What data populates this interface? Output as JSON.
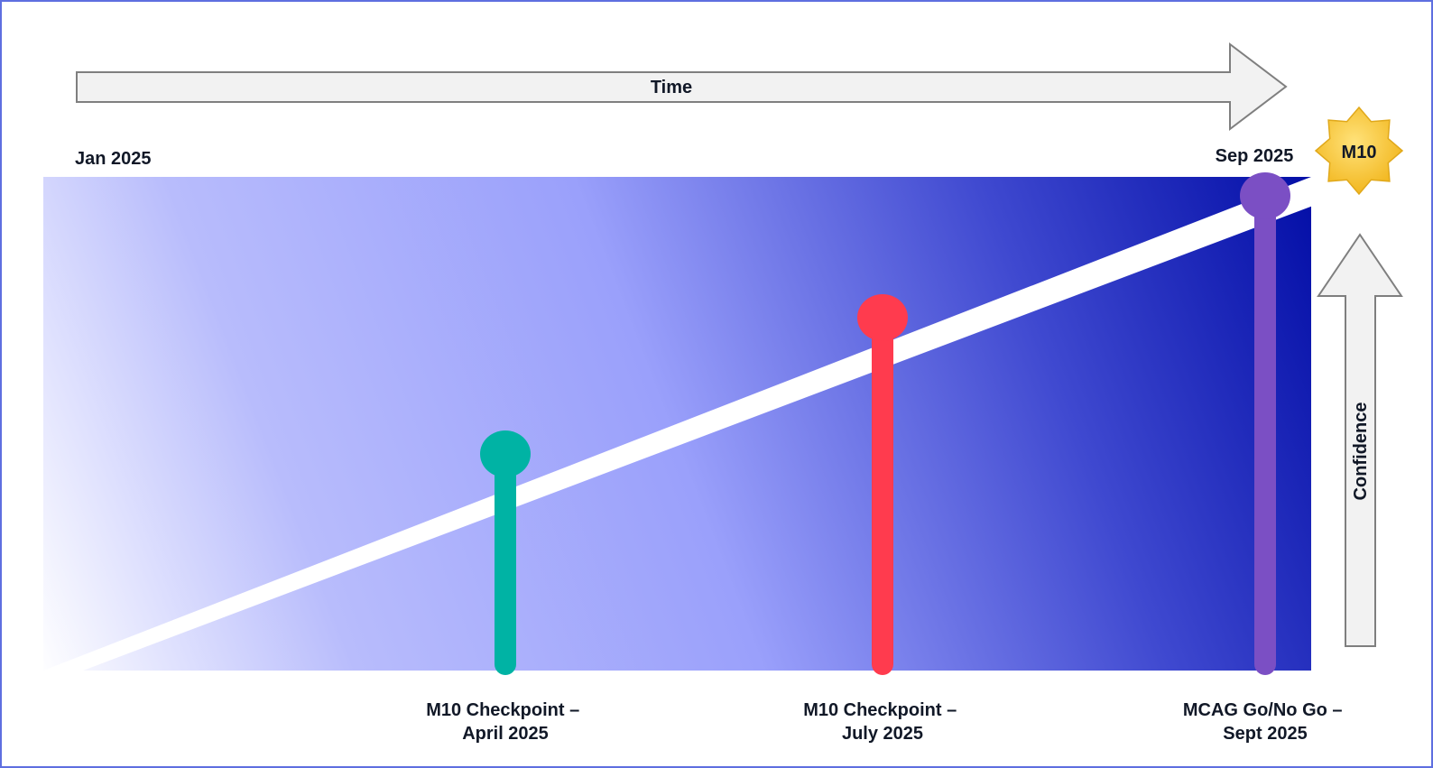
{
  "time_arrow": {
    "label": "Time"
  },
  "confidence_arrow": {
    "label": "Confidence"
  },
  "dates": {
    "start": "Jan 2025",
    "end": "Sep 2025"
  },
  "badge": {
    "label": "M10",
    "icon": "star-badge-icon"
  },
  "milestones": [
    {
      "line1": "M10 Checkpoint –",
      "line2": "April 2025",
      "color": "#00b3a4"
    },
    {
      "line1": "M10 Checkpoint –",
      "line2": "July 2025",
      "color": "#ff3b4e"
    },
    {
      "line1": "MCAG Go/No Go –",
      "line2": "Sept 2025",
      "color": "#7b4fc4"
    }
  ],
  "colors": {
    "frame": "#5e6fe0",
    "gradient_dark": "#0510a8",
    "gradient_mid": "#9aa0fb",
    "gradient_light": "#ffffff",
    "badge": "#f5c030",
    "arrow_fill": "#f2f2f2",
    "arrow_stroke": "#7f7f7f"
  }
}
